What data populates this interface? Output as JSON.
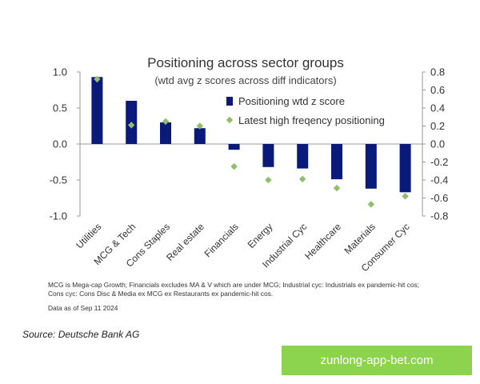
{
  "chart_data": {
    "type": "bar",
    "title": "Positioning across sector groups",
    "subtitle": "(wtd avg z scores across diff indicators)",
    "categories": [
      "Utilities",
      "MCG & Tech",
      "Cons Staples",
      "Real estate",
      "Financials",
      "Energy",
      "Industrial Cyc",
      "Healthcare",
      "Materials",
      "Consumer Cyc"
    ],
    "series": [
      {
        "name": "Positioning wtd z score",
        "type": "bar",
        "axis": "left",
        "color": "#0a1a7a",
        "values": [
          0.93,
          0.6,
          0.3,
          0.22,
          -0.08,
          -0.32,
          -0.34,
          -0.49,
          -0.62,
          -0.67
        ]
      },
      {
        "name": "Latest high freqency positioning",
        "type": "scatter",
        "marker": "diamond",
        "axis": "right",
        "color": "#8fbf6a",
        "values": [
          0.72,
          0.21,
          0.25,
          0.2,
          -0.25,
          -0.4,
          -0.39,
          -0.49,
          -0.67,
          -0.58
        ]
      }
    ],
    "ylim_left": [
      -1.0,
      1.0
    ],
    "yticks_left": [
      1.0,
      0.5,
      0.0,
      -0.5,
      -1.0
    ],
    "ytick_labels_left": [
      "1.0",
      "0.5",
      "0.0",
      "-0.5",
      "-1.0"
    ],
    "ylim_right": [
      -0.8,
      0.8
    ],
    "yticks_right": [
      0.8,
      0.6,
      0.4,
      0.2,
      0.0,
      -0.2,
      -0.4,
      -0.6,
      -0.8
    ],
    "ytick_labels_right": [
      "0.8",
      "0.6",
      "0.4",
      "0.2",
      "0.0",
      "-0.2",
      "-0.4",
      "-0.6",
      "-0.8"
    ],
    "legend_position": "top-right",
    "grid": false
  },
  "footnote": "MCG is Mega-cap Growth; Financials excludes MA & V which are under MCG;  Industrial cyc: Industrials ex pandemic-hit cos; Cons cyc: Cons Disc & Media ex MCG ex Restaurants ex pandemic-hit cos.",
  "as_of": "Data as of Sep 11 2024",
  "source": "Source: Deutsche Bank AG",
  "watermark": "zunlong-app-bet.com"
}
